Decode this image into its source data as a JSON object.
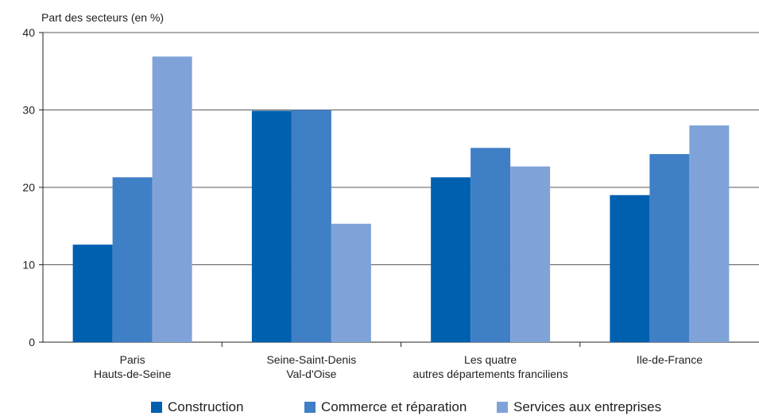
{
  "chart_data": {
    "type": "bar",
    "ylabel": "Part des secteurs (en %)",
    "xlabel": "",
    "ylim": [
      0,
      40
    ],
    "yticks": [
      0,
      10,
      20,
      30,
      40
    ],
    "grid": true,
    "categories": [
      [
        "Paris",
        "Hauts-de-Seine"
      ],
      [
        "Seine-Saint-Denis",
        "Val-d'Oise"
      ],
      [
        "Les quatre",
        "autres départements franciliens"
      ],
      [
        "Ile-de-France"
      ]
    ],
    "series": [
      {
        "name": "Construction",
        "color": "#0060B0",
        "values": [
          12.6,
          29.9,
          21.3,
          19.0
        ]
      },
      {
        "name": "Commerce et réparation",
        "color": "#3F7FC6",
        "values": [
          21.3,
          30.0,
          25.1,
          24.3
        ]
      },
      {
        "name": "Services aux entreprises",
        "color": "#7FA3D9",
        "values": [
          36.9,
          15.3,
          22.7,
          28.0
        ]
      }
    ],
    "legend_position": "bottom"
  }
}
